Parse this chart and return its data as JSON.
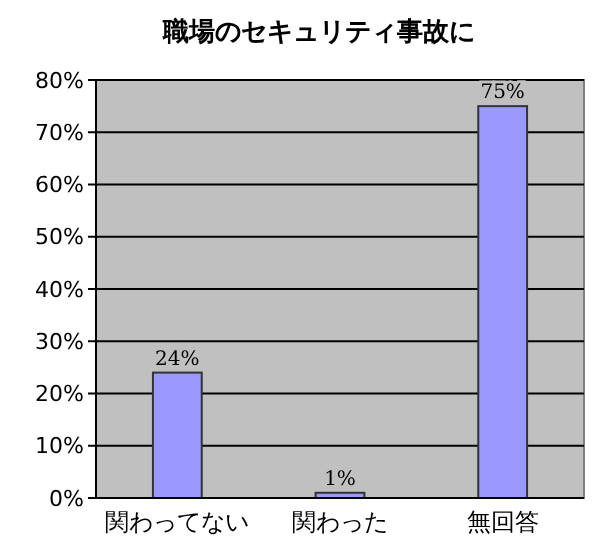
{
  "chart_data": {
    "type": "bar",
    "title": "職場のセキュリティ事故に",
    "categories": [
      "関わってない",
      "関わった",
      "無回答"
    ],
    "values": [
      24,
      1,
      75
    ],
    "color": "#9999ff",
    "value_labels": [
      "24%",
      "1%",
      "75%"
    ],
    "ylim": [
      0,
      80
    ],
    "yticks": [
      {
        "value": 0,
        "label": "0%"
      },
      {
        "value": 10,
        "label": "10%"
      },
      {
        "value": 20,
        "label": "20%"
      },
      {
        "value": 30,
        "label": "30%"
      },
      {
        "value": 40,
        "label": "40%"
      },
      {
        "value": 50,
        "label": "50%"
      },
      {
        "value": 60,
        "label": "60%"
      },
      {
        "value": 70,
        "label": "70%"
      },
      {
        "value": 80,
        "label": "80%"
      }
    ],
    "grid": "y"
  }
}
